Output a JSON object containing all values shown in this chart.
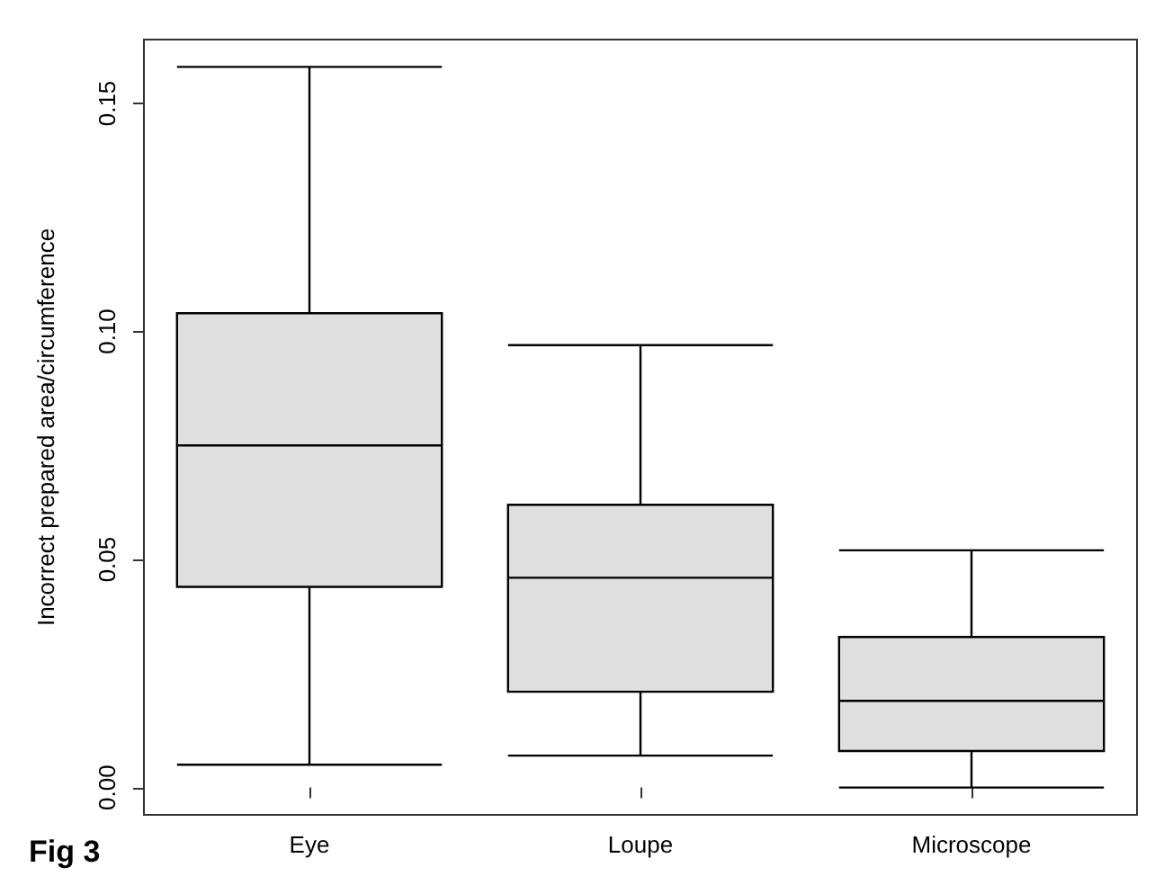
{
  "chart_data": {
    "type": "box",
    "ylabel": "Incorrect prepared area/circumference",
    "categories": [
      "Eye",
      "Loupe",
      "Microscope"
    ],
    "boxes": [
      {
        "low": 0.005,
        "q1": 0.044,
        "median": 0.075,
        "q3": 0.104,
        "high": 0.158
      },
      {
        "low": 0.007,
        "q1": 0.021,
        "median": 0.046,
        "q3": 0.062,
        "high": 0.097
      },
      {
        "low": 0.0,
        "q1": 0.008,
        "median": 0.019,
        "q3": 0.033,
        "high": 0.052
      }
    ],
    "color": "#dfdfdf",
    "ylim": [
      -0.006,
      0.164
    ],
    "yticks": [
      {
        "value": 0,
        "label": "0.00"
      },
      {
        "value": 0.05,
        "label": "0.05"
      },
      {
        "value": 0.1,
        "label": "0.10"
      },
      {
        "value": 0.15,
        "label": "0.15"
      }
    ],
    "grid": false,
    "annotations": [
      "Fig 3"
    ]
  }
}
